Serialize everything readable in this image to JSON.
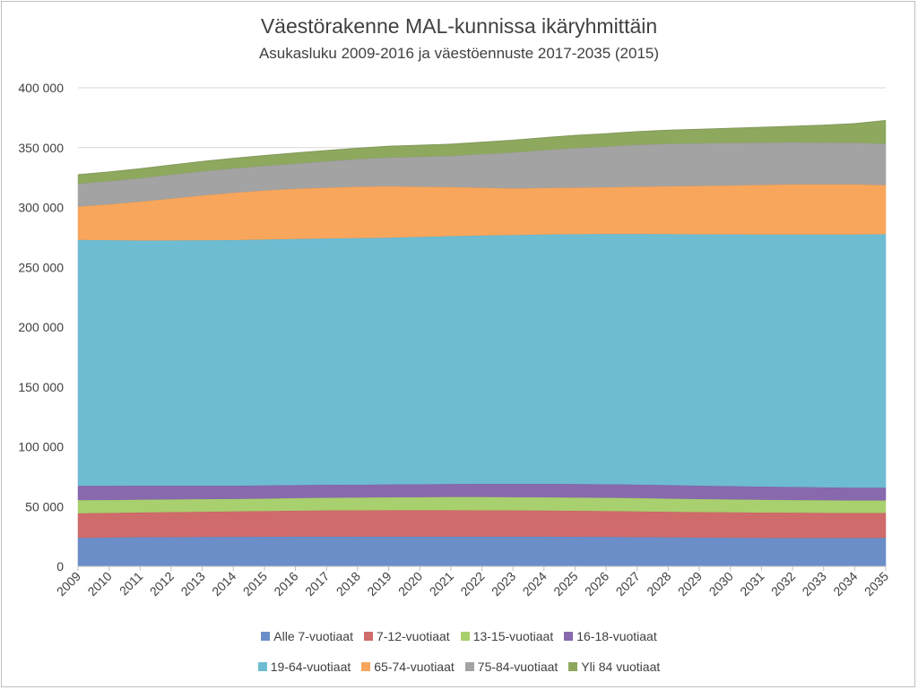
{
  "chart_data": {
    "type": "area",
    "stacked": true,
    "title": "Väestörakenne MAL-kunnissa ikäryhmittäin",
    "subtitle": "Asukasluku 2009-2016 ja väestöennuste 2017-2035 (2015)",
    "xlabel": "",
    "ylabel": "",
    "ylim": [
      0,
      400000
    ],
    "yticks": [
      "0",
      "50 000",
      "100 000",
      "150 000",
      "200 000",
      "250 000",
      "300 000",
      "350 000",
      "400 000"
    ],
    "grid": true,
    "legend_position": "bottom",
    "categories": [
      "2009",
      "2010",
      "2011",
      "2012",
      "2013",
      "2014",
      "2015",
      "2016",
      "2017",
      "2018",
      "2019",
      "2020",
      "2021",
      "2022",
      "2023",
      "2024",
      "2025",
      "2026",
      "2027",
      "2028",
      "2029",
      "2030",
      "2031",
      "2032",
      "2033",
      "2034",
      "2035"
    ],
    "series": [
      {
        "name": "Alle 7-vuotiaat",
        "color": "#6b8ec9",
        "values": [
          24000,
          24300,
          24500,
          24600,
          24700,
          24800,
          24900,
          25000,
          25000,
          25000,
          25000,
          25000,
          25000,
          25000,
          25000,
          25000,
          24900,
          24800,
          24600,
          24400,
          24200,
          24100,
          24000,
          24000,
          24000,
          24000,
          24000
        ]
      },
      {
        "name": "7-12-vuotiaat",
        "color": "#d06b6b",
        "values": [
          20500,
          20500,
          20700,
          20900,
          21100,
          21300,
          21500,
          21700,
          21900,
          22000,
          22100,
          22100,
          22100,
          22000,
          21900,
          21800,
          21700,
          21600,
          21500,
          21400,
          21300,
          21200,
          21100,
          21000,
          20900,
          20800,
          20800
        ]
      },
      {
        "name": "13-15-vuotiaat",
        "color": "#a9d06e",
        "values": [
          11000,
          10800,
          10700,
          10600,
          10500,
          10400,
          10400,
          10500,
          10600,
          10700,
          10800,
          10900,
          11000,
          11100,
          11100,
          11100,
          11100,
          11100,
          11100,
          11000,
          10900,
          10800,
          10700,
          10600,
          10500,
          10400,
          10400
        ]
      },
      {
        "name": "16-18-vuotiaat",
        "color": "#8869ae",
        "values": [
          12000,
          11900,
          11700,
          11500,
          11300,
          11100,
          11000,
          10900,
          10800,
          10700,
          10700,
          10800,
          10900,
          11000,
          11100,
          11200,
          11300,
          11300,
          11300,
          11300,
          11200,
          11100,
          11000,
          10900,
          10800,
          10700,
          10700
        ]
      },
      {
        "name": "19-64-vuotiaat",
        "color": "#6ebcd2",
        "values": [
          205500,
          205300,
          204900,
          205000,
          205100,
          205300,
          205500,
          205700,
          205900,
          206100,
          206300,
          206700,
          207200,
          207600,
          208000,
          208400,
          208800,
          209200,
          209500,
          209800,
          210100,
          210400,
          210700,
          211000,
          211300,
          211600,
          211900
        ]
      },
      {
        "name": "65-74-vuotiaat",
        "color": "#f8a65c",
        "values": [
          28000,
          30000,
          32500,
          35000,
          37500,
          39500,
          41000,
          42000,
          42500,
          43000,
          43000,
          42000,
          41000,
          40000,
          39000,
          39000,
          39000,
          39000,
          39500,
          40000,
          40500,
          41000,
          41500,
          42000,
          42000,
          42000,
          41000
        ]
      },
      {
        "name": "75-84-vuotiaat",
        "color": "#a3a3a3",
        "values": [
          19000,
          19300,
          19600,
          19900,
          20100,
          20300,
          20500,
          21000,
          22000,
          23000,
          24000,
          25000,
          26000,
          28000,
          30000,
          31500,
          33000,
          34000,
          35000,
          35500,
          35600,
          35500,
          35300,
          35000,
          34800,
          34700,
          34500
        ]
      },
      {
        "name": "Yli 84 vuotiaat",
        "color": "#8ea85e",
        "values": [
          7500,
          7700,
          7900,
          8100,
          8300,
          8500,
          8700,
          8900,
          9000,
          9200,
          9400,
          9600,
          9800,
          10000,
          10200,
          10400,
          10600,
          10800,
          11000,
          11300,
          11700,
          12200,
          12800,
          13500,
          14600,
          16000,
          19500
        ]
      }
    ]
  }
}
